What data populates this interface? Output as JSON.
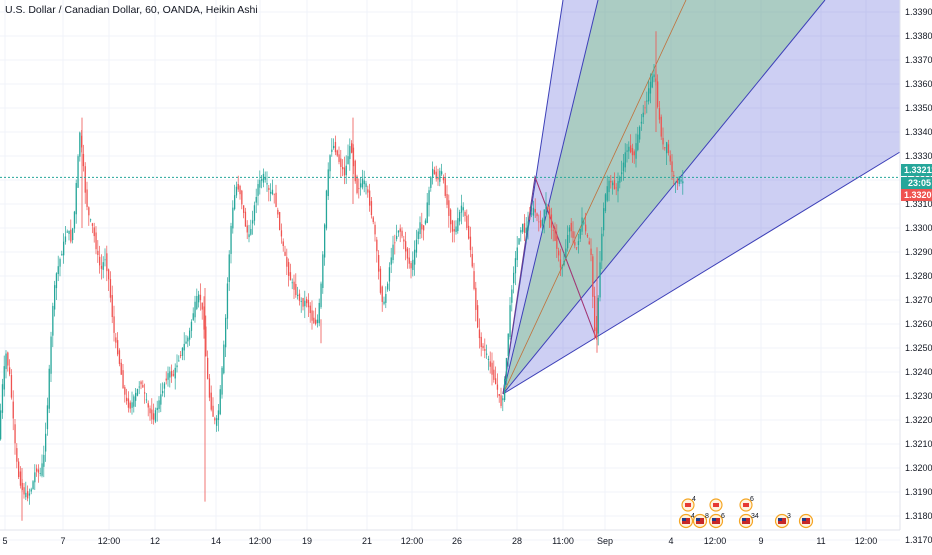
{
  "title": "U.S. Dollar / Canadian Dollar, 60, OANDA, Heikin Ashi",
  "colors": {
    "up": "#26a69a",
    "down": "#ef5350",
    "fan_blue": "#5b5fd6",
    "fan_green": "#6cc76a",
    "price_line": "#26a69a",
    "grid": "#f0f3fa"
  },
  "price_tags": {
    "last": "1.33211",
    "countdown": "23:05",
    "bid": "1.33207",
    "last_color": "#26a69a",
    "countdown_color": "#26a69a",
    "bid_color": "#ef5350"
  },
  "events": {
    "top_row": [
      {
        "flag": "ca",
        "count": "4"
      },
      {
        "flag": "ca",
        "count": ""
      },
      {
        "flag": "ca",
        "count": "6"
      }
    ],
    "bottom_row": [
      {
        "flag": "us",
        "count": "4"
      },
      {
        "flag": "us",
        "count": "8"
      },
      {
        "flag": "us",
        "count": "6"
      },
      {
        "flag": "us",
        "count": "34"
      },
      {
        "flag": "us",
        "count": "3"
      },
      {
        "flag": "us",
        "count": ""
      }
    ]
  },
  "chart_data": {
    "type": "candlestick",
    "title": "U.S. Dollar / Canadian Dollar, 60, OANDA, Heikin Ashi",
    "y_ticks": [
      "1.33900",
      "1.33800",
      "1.33700",
      "1.33600",
      "1.33500",
      "1.33400",
      "1.33300",
      "1.33200",
      "1.33100",
      "1.33000",
      "1.32900",
      "1.32800",
      "1.32700",
      "1.32600",
      "1.32500",
      "1.32400",
      "1.32300",
      "1.32200",
      "1.32100",
      "1.32000",
      "1.31900",
      "1.31800",
      "1.31700"
    ],
    "x_ticks": [
      "5",
      "7",
      "12:00",
      "12",
      "14",
      "12:00",
      "19",
      "21",
      "12:00",
      "26",
      "28",
      "11:00",
      "Sep",
      "4",
      "12:00",
      "9",
      "11",
      "12:00"
    ],
    "ylim": [
      1.3165,
      1.3395
    ],
    "last_price": 1.33211,
    "ohlc_path": [
      [
        0,
        1.3212
      ],
      [
        3,
        1.3232
      ],
      [
        7,
        1.3248
      ],
      [
        11,
        1.3238
      ],
      [
        14,
        1.3222
      ],
      [
        17,
        1.3205
      ],
      [
        20,
        1.3196
      ],
      [
        24,
        1.319
      ],
      [
        29,
        1.3188
      ],
      [
        33,
        1.3192
      ],
      [
        37,
        1.32
      ],
      [
        41,
        1.3197
      ],
      [
        45,
        1.3205
      ],
      [
        48,
        1.3222
      ],
      [
        51,
        1.3245
      ],
      [
        54,
        1.3268
      ],
      [
        57,
        1.328
      ],
      [
        60,
        1.3285
      ],
      [
        63,
        1.329
      ],
      [
        66,
        1.3296
      ],
      [
        69,
        1.33
      ],
      [
        72,
        1.3295
      ],
      [
        75,
        1.3303
      ],
      [
        78,
        1.3322
      ],
      [
        81,
        1.334
      ],
      [
        84,
        1.3328
      ],
      [
        87,
        1.3312
      ],
      [
        90,
        1.3305
      ],
      [
        94,
        1.33
      ],
      [
        98,
        1.329
      ],
      [
        102,
        1.3282
      ],
      [
        106,
        1.3288
      ],
      [
        110,
        1.3278
      ],
      [
        113,
        1.3265
      ],
      [
        116,
        1.3253
      ],
      [
        119,
        1.3248
      ],
      [
        122,
        1.324
      ],
      [
        125,
        1.3232
      ],
      [
        128,
        1.3227
      ],
      [
        131,
        1.3225
      ],
      [
        134,
        1.3228
      ],
      [
        138,
        1.3232
      ],
      [
        142,
        1.3236
      ],
      [
        146,
        1.323
      ],
      [
        150,
        1.3224
      ],
      [
        154,
        1.322
      ],
      [
        158,
        1.3225
      ],
      [
        162,
        1.323
      ],
      [
        166,
        1.3236
      ],
      [
        170,
        1.324
      ],
      [
        174,
        1.3238
      ],
      [
        178,
        1.3243
      ],
      [
        182,
        1.3248
      ],
      [
        186,
        1.3252
      ],
      [
        190,
        1.3255
      ],
      [
        193,
        1.3262
      ],
      [
        196,
        1.3268
      ],
      [
        199,
        1.3272
      ],
      [
        202,
        1.327
      ],
      [
        205,
        1.326
      ],
      [
        208,
        1.324
      ],
      [
        211,
        1.3228
      ],
      [
        214,
        1.3222
      ],
      [
        217,
        1.3218
      ],
      [
        220,
        1.3225
      ],
      [
        223,
        1.324
      ],
      [
        226,
        1.3256
      ],
      [
        229,
        1.328
      ],
      [
        232,
        1.33
      ],
      [
        235,
        1.3312
      ],
      [
        238,
        1.3318
      ],
      [
        241,
        1.3315
      ],
      [
        244,
        1.3308
      ],
      [
        247,
        1.33
      ],
      [
        250,
        1.3296
      ],
      [
        253,
        1.3302
      ],
      [
        256,
        1.331
      ],
      [
        259,
        1.3318
      ],
      [
        262,
        1.332
      ],
      [
        265,
        1.3322
      ],
      [
        268,
        1.3318
      ],
      [
        271,
        1.3314
      ],
      [
        274,
        1.3316
      ],
      [
        277,
        1.331
      ],
      [
        280,
        1.3302
      ],
      [
        283,
        1.3295
      ],
      [
        286,
        1.3288
      ],
      [
        289,
        1.3282
      ],
      [
        292,
        1.3278
      ],
      [
        295,
        1.3275
      ],
      [
        298,
        1.3272
      ],
      [
        301,
        1.327
      ],
      [
        304,
        1.3268
      ],
      [
        307,
        1.327
      ],
      [
        310,
        1.3267
      ],
      [
        313,
        1.3262
      ],
      [
        316,
        1.326
      ],
      [
        319,
        1.3262
      ],
      [
        322,
        1.3275
      ],
      [
        325,
        1.3295
      ],
      [
        328,
        1.3318
      ],
      [
        331,
        1.333
      ],
      [
        334,
        1.3335
      ],
      [
        337,
        1.3332
      ],
      [
        340,
        1.3328
      ],
      [
        343,
        1.3325
      ],
      [
        346,
        1.3322
      ],
      [
        349,
        1.333
      ],
      [
        352,
        1.3335
      ],
      [
        355,
        1.3325
      ],
      [
        358,
        1.3315
      ],
      [
        361,
        1.3318
      ],
      [
        364,
        1.332
      ],
      [
        367,
        1.3318
      ],
      [
        370,
        1.3312
      ],
      [
        373,
        1.3305
      ],
      [
        376,
        1.3298
      ],
      [
        379,
        1.3285
      ],
      [
        382,
        1.3272
      ],
      [
        385,
        1.3268
      ],
      [
        388,
        1.3275
      ],
      [
        391,
        1.3285
      ],
      [
        394,
        1.3292
      ],
      [
        397,
        1.3296
      ],
      [
        400,
        1.33
      ],
      [
        403,
        1.3297
      ],
      [
        406,
        1.3292
      ],
      [
        409,
        1.3287
      ],
      [
        412,
        1.3283
      ],
      [
        415,
        1.3288
      ],
      [
        418,
        1.3296
      ],
      [
        421,
        1.3302
      ],
      [
        424,
        1.3298
      ],
      [
        427,
        1.3305
      ],
      [
        430,
        1.3315
      ],
      [
        433,
        1.3325
      ],
      [
        436,
        1.3322
      ],
      [
        439,
        1.332
      ],
      [
        442,
        1.3325
      ],
      [
        445,
        1.3318
      ],
      [
        448,
        1.331
      ],
      [
        451,
        1.3304
      ],
      [
        454,
        1.3298
      ],
      [
        457,
        1.33
      ],
      [
        460,
        1.3305
      ],
      [
        463,
        1.331
      ],
      [
        466,
        1.3305
      ],
      [
        469,
        1.3298
      ],
      [
        472,
        1.329
      ],
      [
        475,
        1.3275
      ],
      [
        478,
        1.3262
      ],
      [
        481,
        1.3252
      ],
      [
        484,
        1.325
      ],
      [
        487,
        1.3248
      ],
      [
        490,
        1.3244
      ],
      [
        493,
        1.324
      ],
      [
        496,
        1.3236
      ],
      [
        499,
        1.3232
      ],
      [
        502,
        1.3226
      ],
      [
        505,
        1.3232
      ],
      [
        508,
        1.3248
      ],
      [
        511,
        1.3266
      ],
      [
        514,
        1.328
      ],
      [
        517,
        1.3288
      ],
      [
        520,
        1.3296
      ],
      [
        523,
        1.3302
      ],
      [
        526,
        1.3298
      ],
      [
        529,
        1.3302
      ],
      [
        532,
        1.3306
      ],
      [
        535,
        1.3308
      ],
      [
        538,
        1.3305
      ],
      [
        541,
        1.33
      ],
      [
        544,
        1.3304
      ],
      [
        547,
        1.331
      ],
      [
        550,
        1.3306
      ],
      [
        553,
        1.33
      ],
      [
        556,
        1.3296
      ],
      [
        559,
        1.329
      ],
      [
        562,
        1.3282
      ],
      [
        565,
        1.3286
      ],
      [
        568,
        1.3295
      ],
      [
        571,
        1.3302
      ],
      [
        574,
        1.3296
      ],
      [
        577,
        1.329
      ],
      [
        580,
        1.3296
      ],
      [
        583,
        1.3304
      ],
      [
        586,
        1.33
      ],
      [
        589,
        1.3295
      ],
      [
        592,
        1.329
      ],
      [
        595,
        1.3262
      ],
      [
        597,
        1.325
      ],
      [
        599,
        1.3268
      ],
      [
        602,
        1.3292
      ],
      [
        605,
        1.331
      ],
      [
        608,
        1.3316
      ],
      [
        611,
        1.332
      ],
      [
        614,
        1.3318
      ],
      [
        617,
        1.3316
      ],
      [
        620,
        1.332
      ],
      [
        623,
        1.3324
      ],
      [
        626,
        1.333
      ],
      [
        629,
        1.3334
      ],
      [
        632,
        1.3332
      ],
      [
        635,
        1.333
      ],
      [
        638,
        1.3336
      ],
      [
        641,
        1.3342
      ],
      [
        644,
        1.3348
      ],
      [
        647,
        1.3352
      ],
      [
        650,
        1.3358
      ],
      [
        653,
        1.3362
      ],
      [
        656,
        1.3365
      ],
      [
        659,
        1.335
      ],
      [
        662,
        1.334
      ],
      [
        665,
        1.3332
      ],
      [
        668,
        1.3335
      ],
      [
        671,
        1.3328
      ],
      [
        674,
        1.3322
      ],
      [
        677,
        1.3318
      ],
      [
        680,
        1.3321
      ],
      [
        683,
        1.3319
      ]
    ]
  }
}
